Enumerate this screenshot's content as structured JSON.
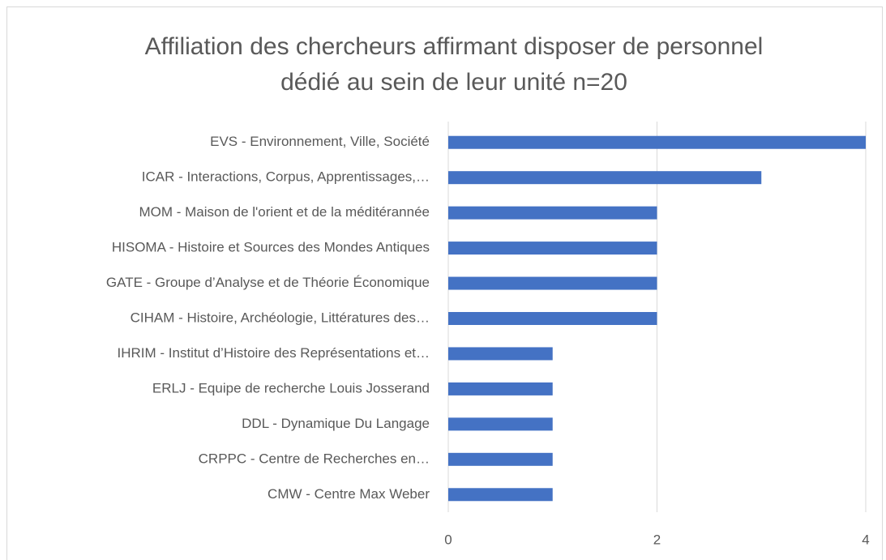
{
  "chart_data": {
    "type": "bar",
    "orientation": "horizontal",
    "title": "Affiliation des chercheurs affirmant disposer de personnel dédié au sein de leur unité n=20",
    "categories": [
      "EVS - Environnement, Ville, Société",
      "ICAR - Interactions, Corpus, Apprentissages,…",
      "MOM - Maison de l'orient et de la méditérannée",
      "HISOMA - Histoire et Sources des Mondes Antiques",
      "GATE - Groupe d’Analyse et de Théorie Économique",
      "CIHAM - Histoire, Archéologie, Littératures des…",
      "IHRIM - Institut d’Histoire des Représentations et…",
      "ERLJ - Equipe de recherche Louis Josserand",
      "DDL - Dynamique Du Langage",
      "CRPPC - Centre de Recherches en…",
      "CMW - Centre Max Weber"
    ],
    "values": [
      4,
      3,
      2,
      2,
      2,
      2,
      1,
      1,
      1,
      1,
      1
    ],
    "color": "#4472c4",
    "xlim": [
      0,
      4
    ],
    "xticks": [
      0,
      2,
      4
    ],
    "grid": true
  }
}
